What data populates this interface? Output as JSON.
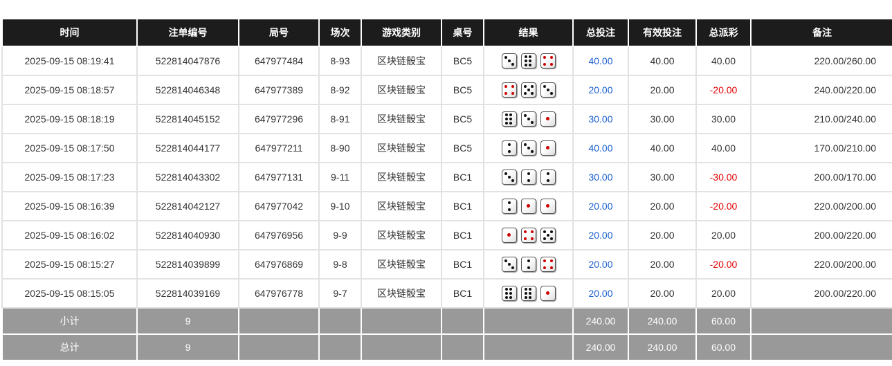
{
  "headers": [
    "时间",
    "注单编号",
    "局号",
    "场次",
    "游戏类别",
    "桌号",
    "结果",
    "总投注",
    "有效投注",
    "总派彩",
    "备注"
  ],
  "rows": [
    [
      "2025-09-15 08:19:41",
      "522814047876",
      "647977484",
      "8-93",
      "区块链骰宝",
      "BC5",
      [
        3,
        6,
        4
      ],
      "40.00",
      "40.00",
      "40.00",
      "220.00/260.00"
    ],
    [
      "2025-09-15 08:18:57",
      "522814046348",
      "647977389",
      "8-92",
      "区块链骰宝",
      "BC5",
      [
        4,
        5,
        3
      ],
      "20.00",
      "20.00",
      "-20.00",
      "240.00/220.00"
    ],
    [
      "2025-09-15 08:18:19",
      "522814045152",
      "647977296",
      "8-91",
      "区块链骰宝",
      "BC5",
      [
        6,
        3,
        1
      ],
      "30.00",
      "30.00",
      "30.00",
      "210.00/240.00"
    ],
    [
      "2025-09-15 08:17:50",
      "522814044177",
      "647977211",
      "8-90",
      "区块链骰宝",
      "BC5",
      [
        2,
        3,
        1
      ],
      "40.00",
      "40.00",
      "40.00",
      "170.00/210.00"
    ],
    [
      "2025-09-15 08:17:23",
      "522814043302",
      "647977131",
      "9-11",
      "区块链骰宝",
      "BC1",
      [
        3,
        2,
        2
      ],
      "30.00",
      "30.00",
      "-30.00",
      "200.00/170.00"
    ],
    [
      "2025-09-15 08:16:39",
      "522814042127",
      "647977042",
      "9-10",
      "区块链骰宝",
      "BC1",
      [
        2,
        1,
        1
      ],
      "20.00",
      "20.00",
      "-20.00",
      "220.00/200.00"
    ],
    [
      "2025-09-15 08:16:02",
      "522814040930",
      "647976956",
      "9-9",
      "区块链骰宝",
      "BC1",
      [
        1,
        4,
        5
      ],
      "20.00",
      "20.00",
      "20.00",
      "200.00/220.00"
    ],
    [
      "2025-09-15 08:15:27",
      "522814039899",
      "647976869",
      "9-8",
      "区块链骰宝",
      "BC1",
      [
        3,
        2,
        4
      ],
      "20.00",
      "20.00",
      "-20.00",
      "220.00/200.00"
    ],
    [
      "2025-09-15 08:15:05",
      "522814039169",
      "647976778",
      "9-7",
      "区块链骰宝",
      "BC1",
      [
        6,
        6,
        1
      ],
      "20.00",
      "20.00",
      "20.00",
      "200.00/220.00"
    ]
  ],
  "subtotal": {
    "label": "小计",
    "count": "9",
    "bet": "240.00",
    "valid": "240.00",
    "payout": "60.00"
  },
  "total": {
    "label": "总计",
    "count": "9",
    "bet": "240.00",
    "valid": "240.00",
    "payout": "60.00"
  },
  "colors": {
    "bet": "#1a5fd0",
    "negative": "#e00000",
    "header_bg": "#1c1c1c",
    "footer_bg": "#999999"
  }
}
